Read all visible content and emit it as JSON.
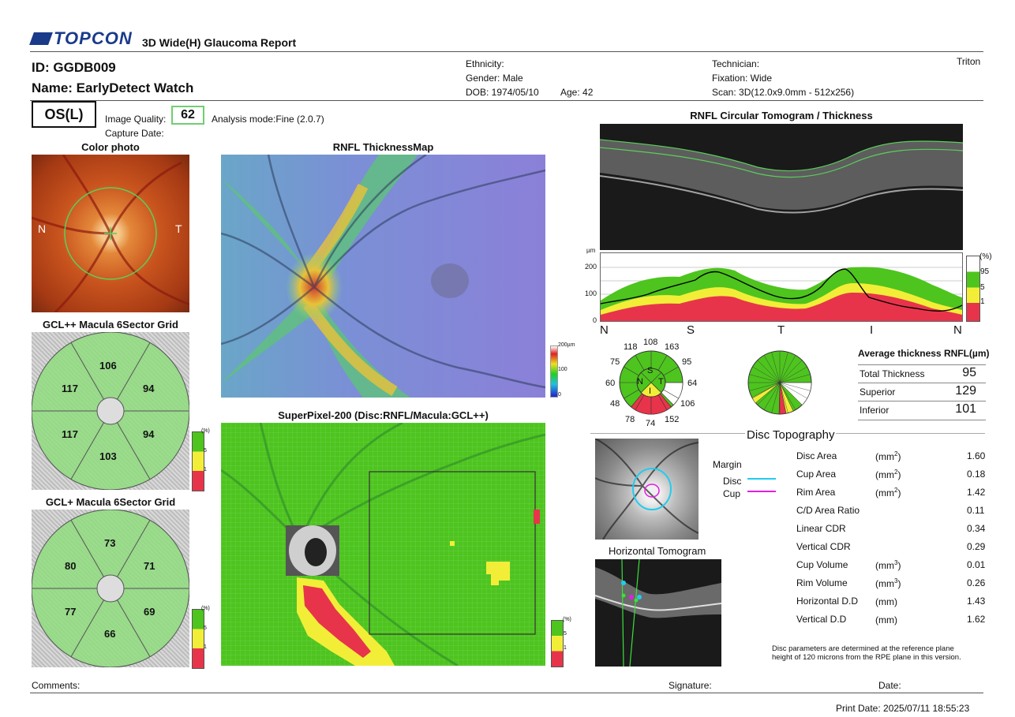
{
  "header": {
    "brand": "TOPCON",
    "report_title": "3D Wide(H) Glaucoma Report",
    "device": "Triton"
  },
  "patient": {
    "id": "ID: GGDB009",
    "name": "Name: EarlyDetect Watch",
    "ethnicity": "Ethnicity:",
    "gender": "Gender: Male",
    "dob": "DOB: 1974/05/10",
    "age": "Age: 42",
    "technician": "Technician:",
    "fixation": "Fixation: Wide",
    "scan": "Scan: 3D(12.0x9.0mm - 512x256)"
  },
  "eye": "OS(L)",
  "image_quality_label": "Image Quality:",
  "image_quality": "62",
  "analysis_mode": "Analysis mode:Fine (2.0.7)",
  "capture_date": "Capture Date:",
  "color_photo": {
    "title": "Color photo",
    "n": "N",
    "t": "T"
  },
  "gcl_pp": {
    "title": "GCL++ Macula 6Sector Grid",
    "values": [
      "106",
      "117",
      "94",
      "117",
      "94",
      "103"
    ],
    "legend": [
      "(%)",
      "5",
      "1"
    ]
  },
  "gcl_p": {
    "title": "GCL+ Macula 6Sector Grid",
    "values": [
      "73",
      "80",
      "71",
      "77",
      "69",
      "66"
    ],
    "legend": [
      "(%)",
      "5",
      "1"
    ]
  },
  "thickness_map": {
    "title": "RNFL ThicknessMap",
    "scale": [
      "200µm",
      "100",
      "0"
    ]
  },
  "superpixel": {
    "title": "SuperPixel-200 (Disc:RNFL/Macula:GCL++)",
    "legend": [
      "(%)",
      "5",
      "1"
    ]
  },
  "circular": {
    "title": "RNFL Circular Tomogram / Thickness",
    "unit": "µm",
    "y_ticks": [
      "200",
      "100",
      "0"
    ],
    "x_labels": [
      "N",
      "S",
      "T",
      "I",
      "N"
    ],
    "pct_legend": [
      "(%)",
      "95",
      "5",
      "1"
    ]
  },
  "clock": {
    "values": [
      "108",
      "118",
      "163",
      "75",
      "95",
      "60",
      "64",
      "48",
      "106",
      "78",
      "74",
      "152"
    ],
    "quadrants": [
      "S",
      "N",
      "T",
      "I"
    ]
  },
  "avg_thickness": {
    "title": "Average thickness RNFL(µm)",
    "rows": [
      {
        "label": "Total Thickness",
        "value": "95"
      },
      {
        "label": "Superior",
        "value": "129"
      },
      {
        "label": "Inferior",
        "value": "101"
      }
    ]
  },
  "disc": {
    "title": "Disc Topography",
    "margin_label": "Margin",
    "disc_label": "Disc",
    "cup_label": "Cup",
    "disc_color": "#22ccee",
    "cup_color": "#e020e0",
    "rows": [
      {
        "label": "Disc Area",
        "unit": "(mm",
        "sup": "2",
        "unit_end": ")",
        "value": "1.60"
      },
      {
        "label": "Cup Area",
        "unit": "(mm",
        "sup": "2",
        "unit_end": ")",
        "value": "0.18"
      },
      {
        "label": "Rim Area",
        "unit": "(mm",
        "sup": "2",
        "unit_end": ")",
        "value": "1.42"
      },
      {
        "label": "C/D Area Ratio",
        "unit": "",
        "sup": "",
        "unit_end": "",
        "value": "0.11"
      },
      {
        "label": "Linear CDR",
        "unit": "",
        "sup": "",
        "unit_end": "",
        "value": "0.34"
      },
      {
        "label": "Vertical CDR",
        "unit": "",
        "sup": "",
        "unit_end": "",
        "value": "0.29"
      },
      {
        "label": "Cup Volume",
        "unit": "(mm",
        "sup": "3",
        "unit_end": ")",
        "value": "0.01"
      },
      {
        "label": "Rim Volume",
        "unit": "(mm",
        "sup": "3",
        "unit_end": ")",
        "value": "0.26"
      },
      {
        "label": "Horizontal D.D",
        "unit": "(mm)",
        "sup": "",
        "unit_end": "",
        "value": "1.43"
      },
      {
        "label": "Vertical D.D",
        "unit": "(mm)",
        "sup": "",
        "unit_end": "",
        "value": "1.62"
      }
    ],
    "note1": "Disc parameters are determined at the reference plane",
    "note2": "height of 120 microns from the RPE plane in this version."
  },
  "horizontal_tomogram": {
    "title": "Horizontal Tomogram"
  },
  "footer": {
    "comments": "Comments:",
    "signature": "Signature:",
    "date": "Date:",
    "print_date": "Print Date: 2025/07/11 18:55:23"
  },
  "colors": {
    "green": "#4ec41e",
    "yellow": "#f2ee38",
    "red": "#e8344a",
    "normal_fill": "#8fdc7f"
  }
}
